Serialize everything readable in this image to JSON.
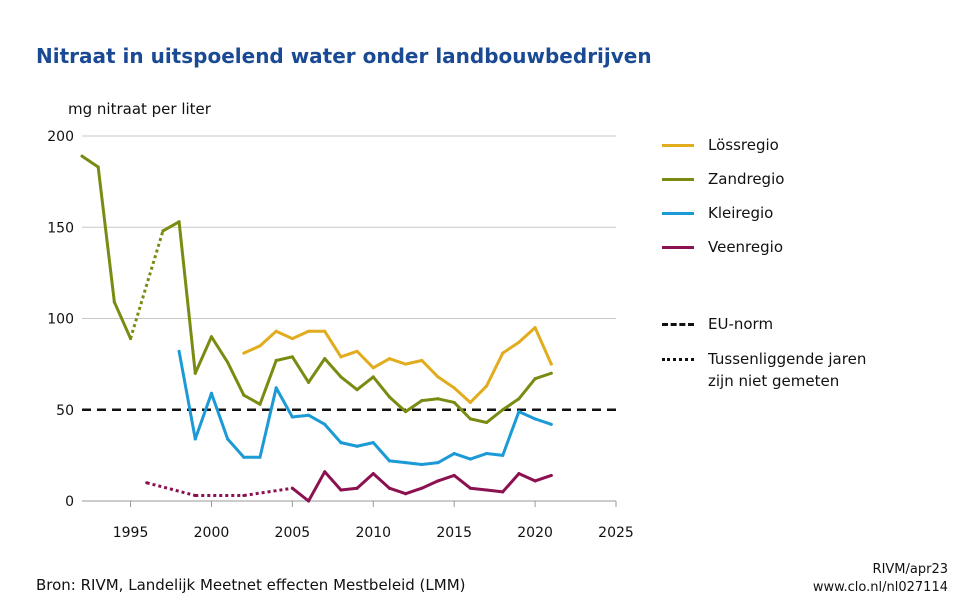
{
  "title": "Nitraat in uitspoelend water onder landbouwbedrijven",
  "source": "Bron: RIVM, Landelijk Meetnet effecten Mestbeleid (LMM)",
  "credit": "RIVM/apr23",
  "url": "www.clo.nl/nl027114",
  "legend": {
    "loss": "Lössregio",
    "zand": "Zandregio",
    "klei": "Kleiregio",
    "veen": "Veenregio",
    "norm": "EU-norm",
    "gap_line1": "Tussenliggende jaren",
    "gap_line2": "zijn niet gemeten"
  },
  "chart_data": {
    "type": "line",
    "title": "Nitraat in uitspoelend water onder landbouwbedrijven",
    "ylabel": "mg nitraat per liter",
    "xlabel": "",
    "xlim": [
      1992,
      2025
    ],
    "ylim": [
      0,
      200
    ],
    "xticks": [
      1995,
      2000,
      2005,
      2010,
      2015,
      2020,
      2025
    ],
    "yticks": [
      0,
      50,
      100,
      150,
      200
    ],
    "grid": "horizontal",
    "legend_position": "right",
    "eu_norm": 50,
    "series": [
      {
        "name": "Lössregio",
        "color": "#e2ac1f",
        "points": [
          [
            2002,
            81
          ],
          [
            2003,
            85
          ],
          [
            2004,
            93
          ],
          [
            2005,
            89
          ],
          [
            2006,
            93
          ],
          [
            2007,
            93
          ],
          [
            2008,
            79
          ],
          [
            2009,
            82
          ],
          [
            2010,
            73
          ],
          [
            2011,
            78
          ],
          [
            2012,
            75
          ],
          [
            2013,
            77
          ],
          [
            2014,
            68
          ],
          [
            2015,
            62
          ],
          [
            2016,
            54
          ],
          [
            2017,
            63
          ],
          [
            2018,
            81
          ],
          [
            2019,
            87
          ],
          [
            2020,
            95
          ],
          [
            2021,
            75
          ]
        ]
      },
      {
        "name": "Zandregio",
        "color": "#7b8b12",
        "points": [
          [
            1992,
            189
          ],
          [
            1993,
            183
          ],
          [
            1994,
            109
          ],
          [
            1995,
            89
          ],
          [
            1997,
            148
          ],
          [
            1998,
            153
          ],
          [
            1999,
            70
          ],
          [
            2000,
            90
          ],
          [
            2001,
            76
          ],
          [
            2002,
            58
          ],
          [
            2003,
            53
          ],
          [
            2004,
            77
          ],
          [
            2005,
            79
          ],
          [
            2006,
            65
          ],
          [
            2007,
            78
          ],
          [
            2008,
            68
          ],
          [
            2009,
            61
          ],
          [
            2010,
            68
          ],
          [
            2011,
            57
          ],
          [
            2012,
            49
          ],
          [
            2013,
            55
          ],
          [
            2014,
            56
          ],
          [
            2015,
            54
          ],
          [
            2016,
            45
          ],
          [
            2017,
            43
          ],
          [
            2018,
            50
          ],
          [
            2019,
            56
          ],
          [
            2020,
            67
          ],
          [
            2021,
            70
          ]
        ],
        "unmeasured_gaps": [
          [
            1995,
            1997
          ]
        ]
      },
      {
        "name": "Kleiregio",
        "color": "#1b9ad6",
        "points": [
          [
            1998,
            82
          ],
          [
            1999,
            34
          ],
          [
            2000,
            59
          ],
          [
            2001,
            34
          ],
          [
            2002,
            24
          ],
          [
            2003,
            24
          ],
          [
            2004,
            62
          ],
          [
            2005,
            46
          ],
          [
            2006,
            47
          ],
          [
            2007,
            42
          ],
          [
            2008,
            32
          ],
          [
            2009,
            30
          ],
          [
            2010,
            32
          ],
          [
            2011,
            22
          ],
          [
            2012,
            21
          ],
          [
            2013,
            20
          ],
          [
            2014,
            21
          ],
          [
            2015,
            26
          ],
          [
            2016,
            23
          ],
          [
            2017,
            26
          ],
          [
            2018,
            25
          ],
          [
            2019,
            49
          ],
          [
            2020,
            45
          ],
          [
            2021,
            42
          ]
        ]
      },
      {
        "name": "Veenregio",
        "color": "#8c1150",
        "points": [
          [
            1996,
            10
          ],
          [
            1999,
            3
          ],
          [
            2002,
            3
          ],
          [
            2005,
            7
          ],
          [
            2006,
            0
          ],
          [
            2007,
            16
          ],
          [
            2008,
            6
          ],
          [
            2009,
            7
          ],
          [
            2010,
            15
          ],
          [
            2011,
            7
          ],
          [
            2012,
            4
          ],
          [
            2013,
            7
          ],
          [
            2014,
            11
          ],
          [
            2015,
            14
          ],
          [
            2016,
            7
          ],
          [
            2017,
            6
          ],
          [
            2018,
            5
          ],
          [
            2019,
            15
          ],
          [
            2020,
            11
          ],
          [
            2021,
            14
          ]
        ],
        "unmeasured_gaps": [
          [
            1996,
            1999
          ],
          [
            1999,
            2002
          ],
          [
            2002,
            2005
          ]
        ]
      }
    ]
  }
}
